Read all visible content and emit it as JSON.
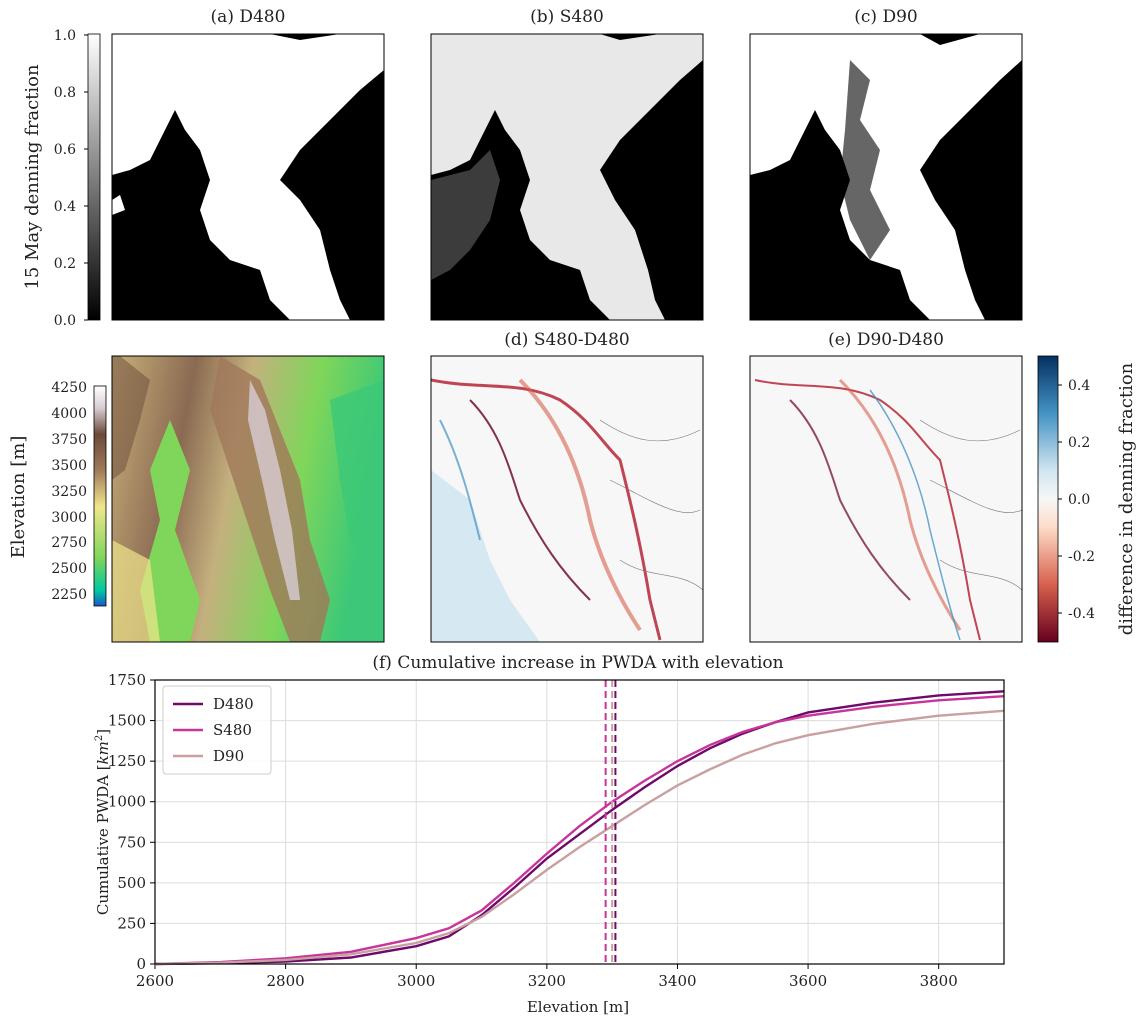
{
  "panels": {
    "a": {
      "title": "(a) D480"
    },
    "b": {
      "title": "(b) S480"
    },
    "c": {
      "title": "(c) D90"
    },
    "d": {
      "title": "(d) S480-D480"
    },
    "e": {
      "title": "(e) D90-D480"
    }
  },
  "colorbars": {
    "denning": {
      "label": "15 May denning fraction",
      "ticks": [
        "0.0",
        "0.2",
        "0.4",
        "0.6",
        "0.8",
        "1.0"
      ],
      "range": [
        0,
        1
      ],
      "colors": [
        "#000000",
        "#ffffff"
      ]
    },
    "elevation": {
      "label": "Elevation [m]",
      "ticks": [
        "2250",
        "2500",
        "2750",
        "3000",
        "3250",
        "3500",
        "3750",
        "4000",
        "4250"
      ],
      "range": [
        2130,
        4300
      ],
      "colors": [
        "#1a56c8",
        "#00c8a0",
        "#7fd65a",
        "#f0e68c",
        "#a0785a",
        "#6a4a3a",
        "#d8ccd4",
        "#ffffff"
      ]
    },
    "difference": {
      "label": "difference in denning fraction",
      "ticks": [
        "-0.4",
        "-0.2",
        "0.0",
        "0.2",
        "0.4"
      ],
      "range": [
        -0.5,
        0.5
      ],
      "colors": [
        "#67001f",
        "#d6604d",
        "#fddbc7",
        "#f7f7f7",
        "#d1e5f0",
        "#4393c3",
        "#053061"
      ]
    }
  },
  "chart_data": {
    "type": "line",
    "title": "(f) Cumulative increase in PWDA with elevation",
    "xlabel": "Elevation [m]",
    "ylabel": "Cumulative PWDA [km²]",
    "xlim": [
      2600,
      3900
    ],
    "ylim": [
      0,
      1750
    ],
    "xticks": [
      "2600",
      "2800",
      "3000",
      "3200",
      "3400",
      "3600",
      "3800"
    ],
    "yticks": [
      "0",
      "250",
      "500",
      "750",
      "1000",
      "1250",
      "1500",
      "1750"
    ],
    "grid": true,
    "legend": "top-left",
    "x": [
      2600,
      2700,
      2800,
      2900,
      3000,
      3050,
      3100,
      3150,
      3200,
      3250,
      3300,
      3350,
      3400,
      3450,
      3500,
      3550,
      3600,
      3700,
      3800,
      3900
    ],
    "series": [
      {
        "name": "D480",
        "color": "#6e0a6a",
        "values": [
          0,
          5,
          15,
          40,
          110,
          170,
          300,
          470,
          650,
          800,
          950,
          1090,
          1220,
          1330,
          1420,
          1490,
          1550,
          1610,
          1655,
          1680
        ],
        "median_elevation": 3305
      },
      {
        "name": "S480",
        "color": "#c7359a",
        "values": [
          0,
          12,
          35,
          75,
          160,
          220,
          330,
          500,
          680,
          850,
          1000,
          1130,
          1250,
          1350,
          1430,
          1490,
          1530,
          1585,
          1625,
          1650
        ],
        "median_elevation": 3290
      },
      {
        "name": "D90",
        "color": "#c9a0a2",
        "values": [
          0,
          8,
          25,
          60,
          130,
          190,
          290,
          430,
          580,
          720,
          850,
          980,
          1100,
          1200,
          1290,
          1360,
          1410,
          1480,
          1530,
          1560
        ],
        "median_elevation": 3300
      }
    ]
  }
}
